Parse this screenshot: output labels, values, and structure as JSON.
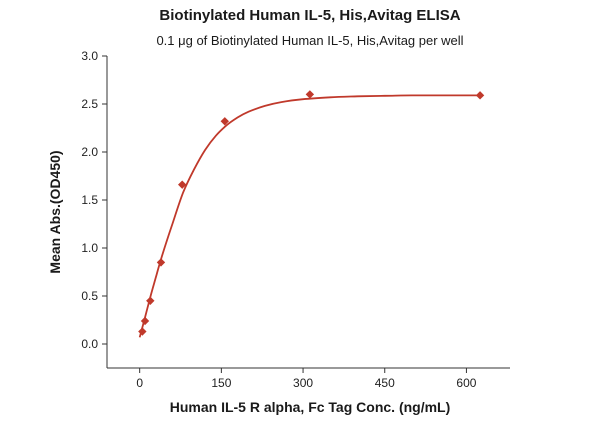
{
  "chart_data": {
    "type": "scatter",
    "title": "Biotinylated Human IL-5, His,Avitag ELISA",
    "subtitle": "0.1 μg of Biotinylated Human IL-5, His,Avitag per well",
    "xlabel": "Human IL-5 R alpha, Fc Tag Conc. (ng/mL)",
    "ylabel": "Mean Abs.(OD450)",
    "xlim": [
      -60,
      680
    ],
    "ylim": [
      -0.25,
      3.0
    ],
    "xticks": [
      0,
      150,
      300,
      450,
      600
    ],
    "yticks": [
      0.0,
      0.5,
      1.0,
      1.5,
      2.0,
      2.5,
      3.0
    ],
    "ytick_labels": [
      "0.0",
      "0.5",
      "1.0",
      "1.5",
      "2.0",
      "2.5",
      "3.0"
    ],
    "grid": false,
    "series": [
      {
        "x": [
          4.9,
          9.8,
          19.5,
          39.1,
          78.1,
          156.3,
          312.5,
          625
        ],
        "y": [
          0.13,
          0.24,
          0.45,
          0.85,
          1.66,
          2.32,
          2.6,
          2.59
        ]
      }
    ],
    "fit_curve": {
      "x": [
        0,
        10,
        20,
        30,
        40,
        60,
        80,
        100,
        120,
        140,
        160,
        180,
        200,
        230,
        260,
        300,
        350,
        400,
        450,
        500,
        550,
        600,
        625
      ],
      "y": [
        0.07,
        0.28,
        0.5,
        0.7,
        0.9,
        1.25,
        1.58,
        1.82,
        2.02,
        2.17,
        2.28,
        2.36,
        2.42,
        2.48,
        2.52,
        2.55,
        2.57,
        2.58,
        2.585,
        2.59,
        2.59,
        2.59,
        2.59
      ]
    },
    "colors": {
      "series": "#c0392b",
      "axis": "#333333"
    }
  }
}
